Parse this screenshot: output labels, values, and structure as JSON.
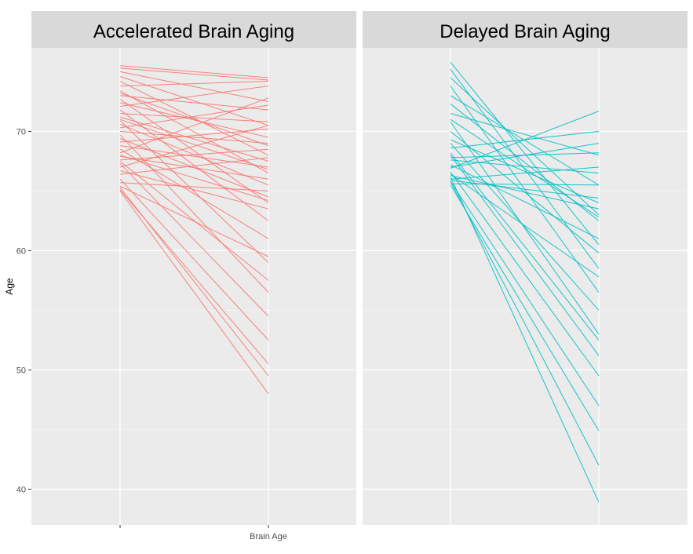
{
  "chart_data": {
    "type": "line",
    "title": "",
    "ylabel": "Age",
    "x_tick_labels": [
      "",
      "Brain Age"
    ],
    "y_ticks": [
      40,
      50,
      60,
      70
    ],
    "ylim": [
      37,
      77
    ],
    "grid": true,
    "legend": "none",
    "panels": [
      {
        "title": "Accelerated Brain Aging",
        "color": "#f8766d",
        "series": [
          {
            "values": [
              75.5,
              74.5
            ]
          },
          {
            "values": [
              75.3,
              74.3
            ]
          },
          {
            "values": [
              75.0,
              72.5
            ]
          },
          {
            "values": [
              74.6,
              70.5
            ]
          },
          {
            "values": [
              74.2,
              68.0
            ]
          },
          {
            "values": [
              73.8,
              74.2
            ]
          },
          {
            "values": [
              73.4,
              66.5
            ]
          },
          {
            "values": [
              73.0,
              71.8
            ]
          },
          {
            "values": [
              72.7,
              64.0
            ]
          },
          {
            "values": [
              72.4,
              69.5
            ]
          },
          {
            "values": [
              72.1,
              73.8
            ]
          },
          {
            "values": [
              71.8,
              62.5
            ]
          },
          {
            "values": [
              71.5,
              70.8
            ]
          },
          {
            "values": [
              71.2,
              67.5
            ]
          },
          {
            "values": [
              70.9,
              59.0
            ]
          },
          {
            "values": [
              70.6,
              65.5
            ]
          },
          {
            "values": [
              70.3,
              72.2
            ]
          },
          {
            "values": [
              70.0,
              69.0
            ]
          },
          {
            "values": [
              69.7,
              56.5
            ]
          },
          {
            "values": [
              69.4,
              64.5
            ]
          },
          {
            "values": [
              69.1,
              70.2
            ]
          },
          {
            "values": [
              68.8,
              67.0
            ]
          },
          {
            "values": [
              68.5,
              61.0
            ]
          },
          {
            "values": [
              68.2,
              72.8
            ]
          },
          {
            "values": [
              67.9,
              66.0
            ]
          },
          {
            "values": [
              67.6,
              68.5
            ]
          },
          {
            "values": [
              67.3,
              54.5
            ]
          },
          {
            "values": [
              67.0,
              70.5
            ]
          },
          {
            "values": [
              66.7,
              63.5
            ]
          },
          {
            "values": [
              66.4,
              67.8
            ]
          },
          {
            "values": [
              66.0,
              52.5
            ]
          },
          {
            "values": [
              65.7,
              65.0
            ]
          },
          {
            "values": [
              65.4,
              59.5
            ]
          },
          {
            "values": [
              65.1,
              50.5
            ]
          },
          {
            "values": [
              65.0,
              48.0
            ]
          },
          {
            "values": [
              65.3,
              49.5
            ]
          },
          {
            "values": [
              67.5,
              57.5
            ]
          },
          {
            "values": [
              68.0,
              64.2
            ]
          },
          {
            "values": [
              71.0,
              66.8
            ]
          },
          {
            "values": [
              73.2,
              68.8
            ]
          }
        ]
      },
      {
        "title": "Delayed Brain Aging",
        "color": "#00bfc4",
        "series": [
          {
            "values": [
              75.8,
              60.5
            ]
          },
          {
            "values": [
              75.2,
              58.5
            ]
          },
          {
            "values": [
              74.5,
              63.0
            ]
          },
          {
            "values": [
              73.8,
              56.5
            ]
          },
          {
            "values": [
              73.0,
              65.5
            ]
          },
          {
            "values": [
              72.3,
              62.5
            ]
          },
          {
            "values": [
              71.5,
              68.0
            ]
          },
          {
            "values": [
              70.8,
              53.0
            ]
          },
          {
            "values": [
              70.0,
              59.8
            ]
          },
          {
            "values": [
              69.3,
              64.0
            ]
          },
          {
            "values": [
              68.6,
              70.0
            ]
          },
          {
            "values": [
              68.0,
              51.2
            ]
          },
          {
            "values": [
              67.6,
              66.5
            ]
          },
          {
            "values": [
              67.2,
              61.0
            ]
          },
          {
            "values": [
              66.9,
              71.7
            ]
          },
          {
            "values": [
              66.6,
              49.5
            ]
          },
          {
            "values": [
              66.3,
              63.5
            ]
          },
          {
            "values": [
              66.0,
              67.0
            ]
          },
          {
            "values": [
              65.8,
              47.0
            ]
          },
          {
            "values": [
              65.6,
              65.5
            ]
          },
          {
            "values": [
              65.5,
              44.9
            ]
          },
          {
            "values": [
              65.8,
              42.0
            ]
          },
          {
            "values": [
              66.2,
              38.9
            ]
          },
          {
            "values": [
              67.0,
              69.0
            ]
          },
          {
            "values": [
              68.2,
              52.5
            ]
          },
          {
            "values": [
              69.0,
              55.0
            ]
          },
          {
            "values": [
              71.0,
              62.8
            ]
          },
          {
            "values": [
              67.8,
              68.2
            ]
          },
          {
            "values": [
              66.4,
              57.8
            ]
          },
          {
            "values": [
              65.9,
              64.4
            ]
          }
        ]
      }
    ]
  }
}
